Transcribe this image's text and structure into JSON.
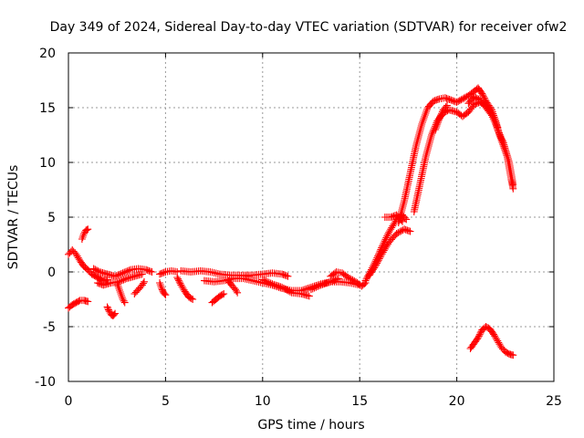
{
  "chart_data": {
    "type": "scatter",
    "title": "Day 349 of 2024, Sidereal Day-to-day VTEC variation (SDTVAR) for receiver ofw2",
    "xlabel": "GPS time / hours",
    "ylabel": "SDTVAR / TECUs",
    "xlim": [
      0,
      25
    ],
    "ylim": [
      -10,
      20
    ],
    "xticks": [
      0,
      5,
      10,
      15,
      20,
      25
    ],
    "yticks": [
      -10,
      -5,
      0,
      5,
      10,
      15,
      20
    ],
    "xtick_labels": [
      "0",
      "5",
      "10",
      "15",
      "20",
      "25"
    ],
    "ytick_labels": [
      "-10",
      "-5",
      "0",
      "5",
      "10",
      "15",
      "20"
    ],
    "grid": true,
    "marker": "plus",
    "marker_color": "#ff0000",
    "series": [
      {
        "name": "SDTVAR",
        "segments": [
          [
            [
              0.0,
              1.6
            ],
            [
              0.2,
              2.0
            ],
            [
              0.4,
              1.6
            ],
            [
              0.6,
              1.0
            ],
            [
              0.8,
              0.5
            ],
            [
              1.0,
              0.2
            ],
            [
              1.2,
              -0.2
            ],
            [
              1.4,
              -0.4
            ],
            [
              1.6,
              -0.6
            ],
            [
              1.8,
              -0.8
            ],
            [
              2.0,
              -0.7
            ]
          ],
          [
            [
              0.0,
              -3.3
            ],
            [
              0.2,
              -3.0
            ],
            [
              0.4,
              -2.8
            ],
            [
              0.6,
              -2.6
            ],
            [
              0.8,
              -2.6
            ],
            [
              1.0,
              -2.7
            ]
          ],
          [
            [
              0.7,
              3.0
            ],
            [
              0.8,
              3.5
            ],
            [
              0.9,
              3.8
            ],
            [
              1.0,
              3.9
            ]
          ],
          [
            [
              1.3,
              0.3
            ],
            [
              1.6,
              0.0
            ],
            [
              2.0,
              -0.2
            ],
            [
              2.4,
              -0.4
            ],
            [
              2.8,
              -0.1
            ],
            [
              3.2,
              0.2
            ],
            [
              3.6,
              0.3
            ],
            [
              4.0,
              0.2
            ],
            [
              4.3,
              0.0
            ]
          ],
          [
            [
              2.0,
              -3.2
            ],
            [
              2.1,
              -3.6
            ],
            [
              2.2,
              -3.9
            ],
            [
              2.3,
              -4.0
            ],
            [
              2.4,
              -3.8
            ]
          ],
          [
            [
              2.5,
              -1.0
            ],
            [
              2.7,
              -2.0
            ],
            [
              2.8,
              -2.5
            ],
            [
              2.9,
              -2.8
            ]
          ],
          [
            [
              1.5,
              -1.0
            ],
            [
              1.8,
              -1.2
            ],
            [
              2.2,
              -1.0
            ],
            [
              2.6,
              -0.9
            ],
            [
              3.0,
              -0.6
            ],
            [
              3.4,
              -0.4
            ],
            [
              3.8,
              -0.2
            ]
          ],
          [
            [
              3.4,
              -2.0
            ],
            [
              3.6,
              -1.6
            ],
            [
              3.8,
              -1.2
            ],
            [
              3.9,
              -0.9
            ]
          ],
          [
            [
              4.7,
              -0.2
            ],
            [
              5.0,
              0.0
            ],
            [
              5.3,
              0.1
            ],
            [
              5.6,
              0.0
            ]
          ],
          [
            [
              4.7,
              -1.0
            ],
            [
              4.8,
              -1.5
            ],
            [
              4.9,
              -1.9
            ],
            [
              5.0,
              -2.1
            ]
          ],
          [
            [
              5.6,
              -0.5
            ],
            [
              5.8,
              -1.2
            ],
            [
              6.0,
              -1.8
            ],
            [
              6.2,
              -2.3
            ],
            [
              6.4,
              -2.5
            ]
          ],
          [
            [
              5.8,
              0.1
            ],
            [
              6.3,
              0.0
            ],
            [
              6.8,
              0.1
            ],
            [
              7.3,
              0.0
            ],
            [
              7.8,
              -0.2
            ],
            [
              8.3,
              -0.3
            ],
            [
              8.8,
              -0.3
            ],
            [
              9.3,
              -0.4
            ]
          ],
          [
            [
              7.4,
              -2.8
            ],
            [
              7.6,
              -2.5
            ],
            [
              7.8,
              -2.2
            ],
            [
              8.0,
              -2.0
            ]
          ],
          [
            [
              7.0,
              -0.8
            ],
            [
              7.5,
              -0.9
            ],
            [
              8.0,
              -0.8
            ],
            [
              8.5,
              -0.6
            ],
            [
              9.0,
              -0.6
            ],
            [
              9.5,
              -0.8
            ],
            [
              10.0,
              -1.0
            ],
            [
              10.5,
              -1.2
            ],
            [
              11.0,
              -1.5
            ],
            [
              11.5,
              -1.7
            ],
            [
              12.0,
              -1.7
            ],
            [
              12.5,
              -1.4
            ],
            [
              13.0,
              -1.1
            ],
            [
              13.5,
              -0.9
            ],
            [
              14.0,
              -0.9
            ],
            [
              14.5,
              -1.0
            ],
            [
              15.0,
              -1.2
            ]
          ],
          [
            [
              8.2,
              -0.7
            ],
            [
              8.4,
              -1.2
            ],
            [
              8.6,
              -1.6
            ],
            [
              8.7,
              -1.9
            ]
          ],
          [
            [
              9.0,
              -0.3
            ],
            [
              9.5,
              -0.3
            ],
            [
              10.0,
              -0.2
            ],
            [
              10.5,
              -0.1
            ],
            [
              11.0,
              -0.2
            ],
            [
              11.3,
              -0.4
            ]
          ],
          [
            [
              10.0,
              -0.7
            ],
            [
              10.5,
              -1.1
            ],
            [
              11.0,
              -1.4
            ],
            [
              11.5,
              -1.9
            ],
            [
              12.0,
              -2.0
            ],
            [
              12.4,
              -2.2
            ]
          ],
          [
            [
              12.5,
              -1.6
            ],
            [
              13.0,
              -1.2
            ],
            [
              13.5,
              -0.9
            ],
            [
              13.9,
              -0.6
            ]
          ],
          [
            [
              13.5,
              -0.4
            ],
            [
              13.8,
              0.0
            ],
            [
              14.1,
              -0.1
            ],
            [
              14.4,
              -0.5
            ],
            [
              14.8,
              -0.9
            ],
            [
              15.1,
              -1.3
            ],
            [
              15.3,
              -1.0
            ]
          ],
          [
            [
              15.3,
              -0.8
            ],
            [
              15.6,
              0.2
            ],
            [
              15.9,
              1.3
            ],
            [
              16.2,
              2.5
            ],
            [
              16.5,
              3.6
            ],
            [
              16.9,
              4.8
            ],
            [
              17.2,
              5.2
            ],
            [
              17.4,
              4.8
            ]
          ],
          [
            [
              15.5,
              -0.3
            ],
            [
              15.8,
              0.5
            ],
            [
              16.1,
              1.5
            ],
            [
              16.5,
              2.7
            ],
            [
              16.9,
              3.5
            ],
            [
              17.3,
              3.9
            ],
            [
              17.6,
              3.7
            ]
          ],
          [
            [
              16.3,
              5.0
            ],
            [
              16.6,
              5.0
            ],
            [
              16.9,
              5.2
            ],
            [
              17.2,
              4.6
            ]
          ],
          [
            [
              17.0,
              4.5
            ],
            [
              17.3,
              6.5
            ],
            [
              17.6,
              9.0
            ],
            [
              17.9,
              11.5
            ],
            [
              18.2,
              13.5
            ],
            [
              18.5,
              15.0
            ],
            [
              18.8,
              15.6
            ],
            [
              19.1,
              15.8
            ],
            [
              19.4,
              15.9
            ],
            [
              19.7,
              15.7
            ],
            [
              20.0,
              15.5
            ],
            [
              20.3,
              15.8
            ],
            [
              20.6,
              16.1
            ],
            [
              20.9,
              16.5
            ],
            [
              21.1,
              16.8
            ],
            [
              21.3,
              16.3
            ],
            [
              21.5,
              15.6
            ],
            [
              21.8,
              14.8
            ],
            [
              22.0,
              13.8
            ],
            [
              22.2,
              12.5
            ],
            [
              22.4,
              11.5
            ],
            [
              22.6,
              10.5
            ],
            [
              22.8,
              8.5
            ],
            [
              22.9,
              7.6
            ]
          ],
          [
            [
              17.8,
              5.5
            ],
            [
              18.1,
              8.0
            ],
            [
              18.4,
              10.5
            ],
            [
              18.7,
              12.5
            ],
            [
              19.0,
              13.8
            ],
            [
              19.3,
              14.5
            ],
            [
              19.6,
              14.8
            ],
            [
              20.0,
              14.6
            ],
            [
              20.3,
              14.2
            ],
            [
              20.6,
              14.6
            ],
            [
              20.9,
              15.3
            ],
            [
              21.2,
              15.5
            ],
            [
              21.5,
              15.2
            ],
            [
              21.8,
              14.5
            ],
            [
              22.1,
              13.0
            ],
            [
              22.4,
              11.8
            ],
            [
              22.7,
              10.0
            ],
            [
              22.9,
              8.0
            ]
          ],
          [
            [
              20.6,
              15.4
            ],
            [
              20.9,
              16.0
            ],
            [
              21.2,
              15.7
            ],
            [
              21.5,
              15.0
            ],
            [
              21.8,
              14.3
            ],
            [
              22.1,
              13.2
            ]
          ],
          [
            [
              18.9,
              13.0
            ],
            [
              19.1,
              14.0
            ],
            [
              19.3,
              14.8
            ],
            [
              19.5,
              15.2
            ]
          ],
          [
            [
              20.7,
              -7.0
            ],
            [
              20.9,
              -6.5
            ],
            [
              21.1,
              -6.0
            ],
            [
              21.3,
              -5.3
            ],
            [
              21.5,
              -5.0
            ],
            [
              21.7,
              -5.2
            ],
            [
              21.9,
              -5.7
            ],
            [
              22.1,
              -6.3
            ],
            [
              22.3,
              -6.9
            ],
            [
              22.5,
              -7.3
            ],
            [
              22.7,
              -7.5
            ],
            [
              22.9,
              -7.6
            ]
          ]
        ]
      }
    ]
  }
}
